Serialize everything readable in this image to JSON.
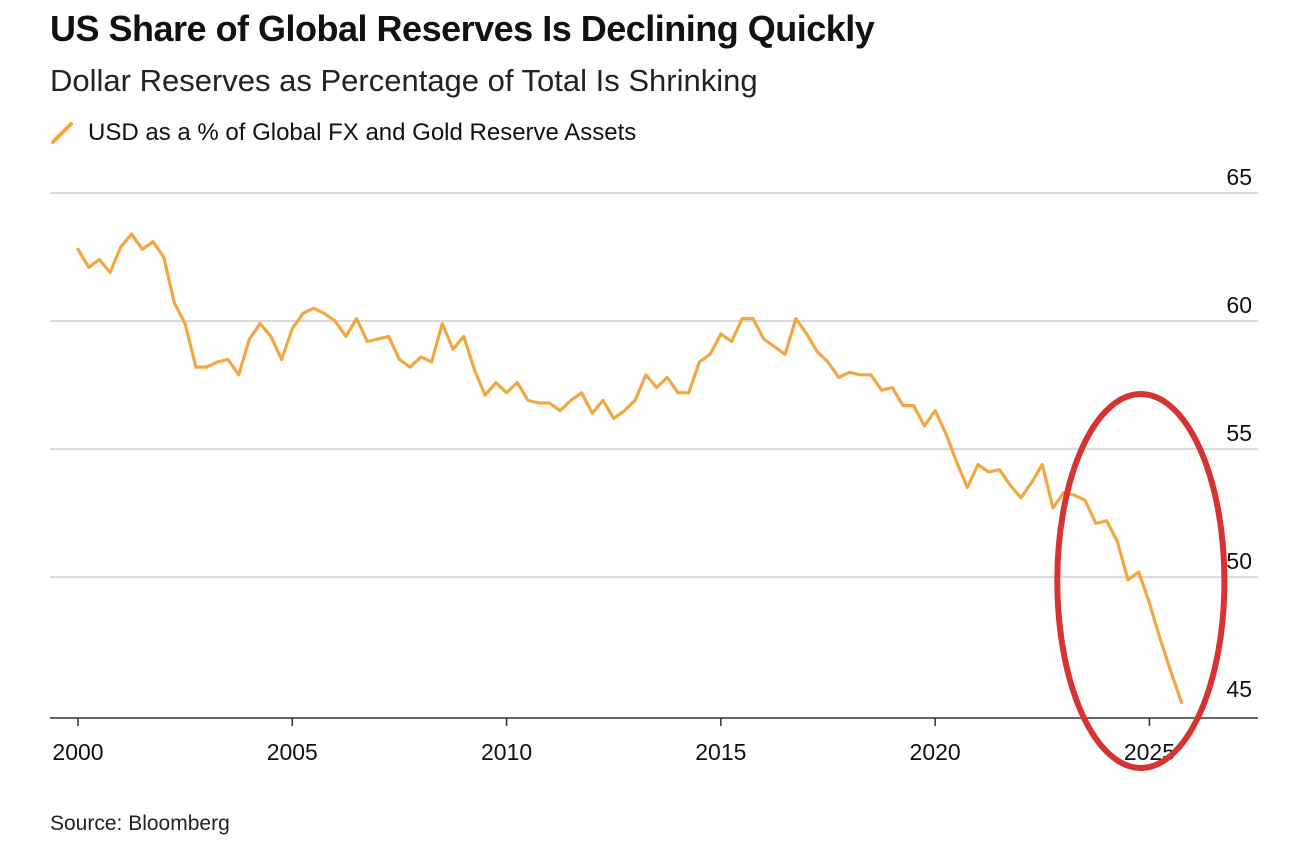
{
  "title": "US Share of Global Reserves Is Declining Quickly",
  "subtitle": "Dollar Reserves as Percentage of Total Is Shrinking",
  "source": "Source: Bloomberg",
  "colors": {
    "series": "#f2a742",
    "grid": "#d9d9d9",
    "axis": "#333333",
    "annotation": "#d63333"
  },
  "chart_data": {
    "type": "line",
    "title": "US Share of Global Reserves Is Declining Quickly",
    "subtitle": "Dollar Reserves as Percentage of Total Is Shrinking",
    "xlabel": "",
    "ylabel": "",
    "xlim": [
      2000,
      2028
    ],
    "ylim": [
      44.5,
      65
    ],
    "yaxis_side": "right",
    "grid": true,
    "x_ticks": [
      2000,
      2005,
      2010,
      2015,
      2020,
      2025
    ],
    "x_tick_labels": [
      "2000",
      "2005",
      "2010",
      "2015",
      "2020",
      "2025"
    ],
    "y_ticks": [
      45,
      50,
      55,
      60,
      65
    ],
    "y_tick_labels": [
      "45",
      "50",
      "55",
      "60",
      "65"
    ],
    "legend_position": "top-left",
    "series": [
      {
        "name": "USD as a % of Global FX and Gold Reserve Assets",
        "x": [
          2000.0,
          2000.25,
          2000.5,
          2000.75,
          2001.0,
          2001.25,
          2001.5,
          2001.75,
          2002.0,
          2002.25,
          2002.5,
          2002.75,
          2003.0,
          2003.25,
          2003.5,
          2003.75,
          2004.0,
          2004.25,
          2004.5,
          2004.75,
          2005.0,
          2005.25,
          2005.5,
          2005.75,
          2006.0,
          2006.25,
          2006.5,
          2006.75,
          2007.0,
          2007.25,
          2007.5,
          2007.75,
          2008.0,
          2008.25,
          2008.5,
          2008.75,
          2009.0,
          2009.25,
          2009.5,
          2009.75,
          2010.0,
          2010.25,
          2010.5,
          2010.75,
          2011.0,
          2011.25,
          2011.5,
          2011.75,
          2012.0,
          2012.25,
          2012.5,
          2012.75,
          2013.0,
          2013.25,
          2013.5,
          2013.75,
          2014.0,
          2014.25,
          2014.5,
          2014.75,
          2015.0,
          2015.25,
          2015.5,
          2015.75,
          2016.0,
          2016.25,
          2016.5,
          2016.75,
          2017.0,
          2017.25,
          2017.5,
          2017.75,
          2018.0,
          2018.25,
          2018.5,
          2018.75,
          2019.0,
          2019.25,
          2019.5,
          2019.75,
          2020.0,
          2020.25,
          2020.5,
          2020.75,
          2021.0,
          2021.25,
          2021.5,
          2021.75,
          2022.0,
          2022.25,
          2022.5,
          2022.75,
          2023.0,
          2023.25,
          2023.5,
          2023.75,
          2024.0,
          2024.25,
          2024.5,
          2024.75,
          2025.0,
          2025.25,
          2025.5,
          2025.75
        ],
        "values": [
          62.8,
          62.1,
          62.4,
          61.9,
          62.9,
          63.4,
          62.8,
          63.1,
          62.5,
          60.7,
          59.9,
          58.2,
          58.2,
          58.4,
          58.5,
          57.9,
          59.3,
          59.9,
          59.4,
          58.5,
          59.7,
          60.3,
          60.5,
          60.3,
          60.0,
          59.4,
          60.1,
          59.2,
          59.3,
          59.4,
          58.5,
          58.2,
          58.6,
          58.4,
          59.9,
          58.9,
          59.4,
          58.1,
          57.1,
          57.6,
          57.2,
          57.6,
          56.9,
          56.8,
          56.8,
          56.5,
          56.9,
          57.2,
          56.4,
          56.9,
          56.2,
          56.5,
          56.9,
          57.9,
          57.4,
          57.8,
          57.2,
          57.2,
          58.4,
          58.7,
          59.5,
          59.2,
          60.1,
          60.1,
          59.3,
          59.0,
          58.7,
          60.1,
          59.5,
          58.8,
          58.4,
          57.8,
          58.0,
          57.9,
          57.9,
          57.3,
          57.4,
          56.7,
          56.7,
          55.9,
          56.5,
          55.6,
          54.5,
          53.5,
          54.4,
          54.1,
          54.2,
          53.6,
          53.1,
          53.7,
          54.4,
          52.7,
          53.3,
          53.2,
          53.0,
          52.1,
          52.2,
          51.4,
          49.9,
          50.2,
          49.0,
          47.6,
          46.3,
          45.1
        ]
      }
    ],
    "annotations": [
      {
        "type": "ellipse-highlight",
        "x_center": 2024.8,
        "y_center": 49.85,
        "x_radius": 1.95,
        "y_radius": 7.3
      }
    ]
  }
}
